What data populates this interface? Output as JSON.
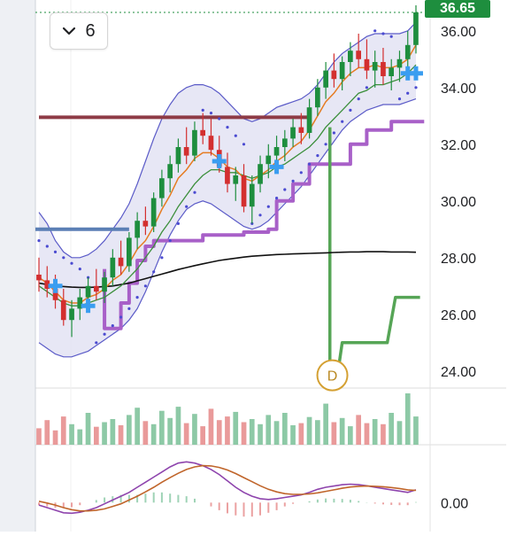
{
  "collapse_button": {
    "label": "6",
    "icon": "chevron-down-icon"
  },
  "price_tag": {
    "value": "36.65",
    "color": "#1e8e3e"
  },
  "y_axis_ticks": [
    "36.00",
    "34.00",
    "32.00",
    "30.00",
    "28.00",
    "26.00",
    "24.00"
  ],
  "macd_axis_tick": "0.00",
  "marker": {
    "label": "D"
  },
  "colors": {
    "bollinger_fill": "#e4e4f4",
    "bollinger_line": "#5b5bc8",
    "up_candle": "#1e8e3e",
    "down_candle": "#d32f2f",
    "ema_fast": "#e67c22",
    "ema_slow": "#3b8f3b",
    "sma_long": "#111111",
    "resistance": "#8e3b46",
    "support": "#5b7fb5",
    "kijun": "#a860c8",
    "chikou": "#56a556",
    "macd_line": "#8e44ad",
    "signal_line": "#c0652b"
  },
  "chart_data": {
    "type": "candlestick",
    "ylim": [
      23.4,
      36.9
    ],
    "y_ticks": [
      36,
      34,
      32,
      30,
      28,
      26,
      24
    ],
    "candles": [
      [
        27.4,
        28.0,
        26.8,
        27.2
      ],
      [
        27.2,
        27.7,
        26.6,
        26.9
      ],
      [
        26.9,
        27.4,
        26.2,
        26.5
      ],
      [
        26.5,
        26.9,
        25.6,
        25.8
      ],
      [
        25.8,
        26.5,
        25.2,
        26.2
      ],
      [
        26.2,
        26.9,
        25.8,
        26.6
      ],
      [
        26.6,
        27.3,
        26.3,
        27.0
      ],
      [
        27.0,
        27.6,
        26.5,
        26.8
      ],
      [
        26.8,
        27.5,
        26.4,
        27.3
      ],
      [
        27.3,
        28.3,
        27.0,
        28.0
      ],
      [
        28.0,
        28.6,
        27.4,
        27.7
      ],
      [
        27.7,
        28.9,
        27.5,
        28.7
      ],
      [
        28.7,
        29.6,
        28.3,
        29.3
      ],
      [
        29.3,
        29.8,
        28.8,
        29.1
      ],
      [
        29.1,
        30.3,
        28.9,
        30.1
      ],
      [
        30.1,
        31.1,
        29.8,
        30.8
      ],
      [
        30.8,
        31.6,
        30.3,
        31.3
      ],
      [
        31.3,
        32.2,
        31.0,
        31.9
      ],
      [
        31.9,
        32.6,
        31.3,
        31.6
      ],
      [
        31.6,
        32.8,
        31.4,
        32.5
      ],
      [
        32.5,
        33.1,
        32.0,
        32.3
      ],
      [
        32.3,
        32.9,
        31.6,
        31.8
      ],
      [
        31.8,
        32.3,
        31.0,
        31.2
      ],
      [
        31.2,
        31.7,
        30.3,
        30.6
      ],
      [
        30.6,
        31.2,
        30.0,
        30.9
      ],
      [
        30.9,
        31.3,
        29.6,
        29.8
      ],
      [
        29.8,
        30.9,
        29.2,
        30.6
      ],
      [
        30.6,
        31.6,
        30.3,
        31.3
      ],
      [
        31.3,
        32.0,
        30.8,
        31.6
      ],
      [
        31.6,
        32.3,
        31.2,
        31.9
      ],
      [
        31.9,
        32.5,
        31.4,
        32.2
      ],
      [
        32.2,
        32.9,
        31.9,
        32.6
      ],
      [
        32.6,
        33.1,
        32.0,
        32.4
      ],
      [
        32.4,
        33.6,
        32.2,
        33.3
      ],
      [
        33.3,
        34.3,
        33.0,
        34.0
      ],
      [
        34.0,
        34.9,
        33.6,
        34.6
      ],
      [
        34.6,
        35.2,
        34.0,
        34.3
      ],
      [
        34.3,
        35.1,
        33.9,
        34.9
      ],
      [
        34.9,
        35.6,
        34.4,
        35.3
      ],
      [
        35.3,
        35.9,
        34.7,
        35.0
      ],
      [
        35.0,
        35.7,
        34.3,
        34.6
      ],
      [
        34.6,
        35.3,
        34.0,
        34.9
      ],
      [
        34.9,
        35.4,
        34.1,
        34.4
      ],
      [
        34.4,
        35.0,
        33.9,
        34.7
      ],
      [
        34.7,
        35.3,
        34.2,
        35.0
      ],
      [
        35.0,
        36.0,
        34.6,
        35.5
      ],
      [
        35.5,
        36.9,
        35.2,
        36.65
      ]
    ],
    "bollinger_upper": [
      29.6,
      29.2,
      28.6,
      28.2,
      28.0,
      28.0,
      28.1,
      28.3,
      28.6,
      29.0,
      29.4,
      29.9,
      30.6,
      31.4,
      32.2,
      32.9,
      33.4,
      33.8,
      34.0,
      34.1,
      34.1,
      34.0,
      33.8,
      33.5,
      33.2,
      32.9,
      32.8,
      32.9,
      33.1,
      33.3,
      33.4,
      33.5,
      33.6,
      33.8,
      34.1,
      34.5,
      34.9,
      35.2,
      35.4,
      35.6,
      35.8,
      35.9,
      35.9,
      35.9,
      35.9,
      36.0,
      36.3
    ],
    "bollinger_lower": [
      25.0,
      24.8,
      24.6,
      24.5,
      24.5,
      24.6,
      24.7,
      24.9,
      25.1,
      25.3,
      25.5,
      25.8,
      26.2,
      26.8,
      27.5,
      28.2,
      28.8,
      29.3,
      29.7,
      29.9,
      30.0,
      29.9,
      29.7,
      29.5,
      29.3,
      29.1,
      29.0,
      29.1,
      29.3,
      29.6,
      29.9,
      30.2,
      30.5,
      30.9,
      31.3,
      31.7,
      32.1,
      32.5,
      32.8,
      33.0,
      33.2,
      33.3,
      33.4,
      33.4,
      33.4,
      33.5,
      33.6
    ],
    "bollinger_mid": [
      27.3,
      27.0,
      26.6,
      26.4,
      26.3,
      26.3,
      26.4,
      26.6,
      26.9,
      27.2,
      27.5,
      27.9,
      28.4,
      29.1,
      29.8,
      30.5,
      31.1,
      31.6,
      31.9,
      32.0,
      32.0,
      31.9,
      31.7,
      31.5,
      31.2,
      31.0,
      30.9,
      31.0,
      31.2,
      31.5,
      31.7,
      31.9,
      32.1,
      32.4,
      32.7,
      33.1,
      33.5,
      33.9,
      34.1,
      34.3,
      34.5,
      34.6,
      34.6,
      34.6,
      34.7,
      34.8,
      35.0
    ],
    "ema_fast": [
      27.3,
      27.1,
      26.8,
      26.5,
      26.4,
      26.4,
      26.6,
      26.7,
      26.9,
      27.2,
      27.4,
      27.8,
      28.3,
      28.6,
      29.1,
      29.7,
      30.2,
      30.8,
      31.1,
      31.5,
      31.7,
      31.7,
      31.5,
      31.2,
      31.1,
      30.8,
      30.7,
      30.9,
      31.1,
      31.4,
      31.6,
      31.9,
      32.1,
      32.5,
      33.0,
      33.5,
      33.8,
      34.2,
      34.5,
      34.7,
      34.7,
      34.8,
      34.7,
      34.7,
      34.8,
      35.0,
      35.5
    ],
    "ema_slow": [
      27.0,
      26.8,
      26.6,
      26.4,
      26.3,
      26.3,
      26.4,
      26.5,
      26.6,
      26.8,
      27.0,
      27.3,
      27.6,
      28.0,
      28.4,
      28.9,
      29.3,
      29.8,
      30.2,
      30.6,
      30.9,
      31.1,
      31.1,
      31.0,
      31.0,
      30.9,
      30.8,
      30.9,
      31.0,
      31.2,
      31.3,
      31.5,
      31.7,
      31.9,
      32.2,
      32.6,
      32.9,
      33.2,
      33.5,
      33.8,
      33.9,
      34.1,
      34.1,
      34.2,
      34.3,
      34.5,
      34.8
    ],
    "sma_long": [
      27.1,
      27.05,
      27.0,
      26.98,
      26.96,
      26.95,
      26.95,
      26.96,
      26.98,
      27.0,
      27.05,
      27.1,
      27.18,
      27.26,
      27.34,
      27.42,
      27.5,
      27.58,
      27.65,
      27.72,
      27.78,
      27.84,
      27.9,
      27.94,
      27.98,
      28.02,
      28.05,
      28.07,
      28.09,
      28.11,
      28.12,
      28.13,
      28.14,
      28.15,
      28.16,
      28.17,
      28.18,
      28.19,
      28.2,
      28.2,
      28.21,
      28.21,
      28.21,
      28.2,
      28.2,
      28.2,
      28.19
    ],
    "psar": [
      28.6,
      28.4,
      28.2,
      28.0,
      27.8,
      27.6,
      27.3,
      25.0,
      25.3,
      25.6,
      25.9,
      26.2,
      26.6,
      27.0,
      27.5,
      28.0,
      28.6,
      29.2,
      29.8,
      30.3,
      33.2,
      33.1,
      32.9,
      32.6,
      32.3,
      32.0,
      29.2,
      29.5,
      29.8,
      30.1,
      30.4,
      30.7,
      31.0,
      31.3,
      31.6,
      32.0,
      32.4,
      32.8,
      33.2,
      33.6,
      34.0,
      36.0,
      35.9,
      35.8,
      33.6,
      33.8,
      34.0
    ],
    "resistance": {
      "value": 32.95,
      "from": 0,
      "to": 33
    },
    "support": {
      "value": 29.0,
      "from": 0,
      "to": 11
    },
    "kijun": [
      null,
      null,
      null,
      null,
      null,
      null,
      null,
      null,
      null,
      null,
      null,
      null,
      null,
      null,
      null,
      null,
      null,
      null,
      null,
      null,
      null,
      null,
      null,
      null,
      null,
      null,
      null,
      null,
      null,
      null,
      null,
      null,
      null,
      null,
      null,
      null,
      null,
      null,
      null,
      null,
      null,
      null,
      null,
      null,
      null,
      null,
      null
    ],
    "volume": [
      0.32,
      0.48,
      0.28,
      0.55,
      0.4,
      0.3,
      0.62,
      0.35,
      0.44,
      0.5,
      0.38,
      0.58,
      0.72,
      0.46,
      0.4,
      0.66,
      0.52,
      0.74,
      0.42,
      0.6,
      0.36,
      0.7,
      0.48,
      0.55,
      0.64,
      0.44,
      0.5,
      0.4,
      0.58,
      0.46,
      0.62,
      0.38,
      0.42,
      0.54,
      0.48,
      0.8,
      0.44,
      0.52,
      0.36,
      0.58,
      0.42,
      0.5,
      0.4,
      0.62,
      0.46,
      1.0,
      0.55
    ],
    "macd": [
      -0.1,
      -0.2,
      -0.3,
      -0.4,
      -0.42,
      -0.38,
      -0.3,
      -0.2,
      -0.05,
      0.1,
      0.25,
      0.4,
      0.6,
      0.8,
      1.0,
      1.2,
      1.4,
      1.55,
      1.6,
      1.55,
      1.45,
      1.3,
      1.1,
      0.85,
      0.6,
      0.4,
      0.25,
      0.15,
      0.12,
      0.15,
      0.2,
      0.25,
      0.3,
      0.4,
      0.52,
      0.6,
      0.65,
      0.7,
      0.72,
      0.7,
      0.66,
      0.6,
      0.55,
      0.5,
      0.45,
      0.4,
      0.5
    ],
    "signal": [
      0.05,
      -0.02,
      -0.1,
      -0.2,
      -0.28,
      -0.33,
      -0.33,
      -0.3,
      -0.25,
      -0.15,
      -0.05,
      0.1,
      0.25,
      0.42,
      0.6,
      0.8,
      0.98,
      1.15,
      1.3,
      1.4,
      1.45,
      1.44,
      1.38,
      1.28,
      1.14,
      0.98,
      0.82,
      0.66,
      0.52,
      0.42,
      0.35,
      0.32,
      0.32,
      0.34,
      0.38,
      0.44,
      0.5,
      0.56,
      0.61,
      0.64,
      0.65,
      0.64,
      0.62,
      0.59,
      0.55,
      0.5,
      0.48
    ],
    "macd_hist": [
      -0.1,
      -0.15,
      -0.2,
      -0.2,
      -0.18,
      -0.1,
      0.0,
      0.1,
      0.2,
      0.25,
      0.3,
      0.3,
      0.3,
      0.35,
      0.4,
      0.4,
      0.35,
      0.3,
      0.25,
      0.15,
      0.0,
      -0.15,
      -0.3,
      -0.42,
      -0.5,
      -0.55,
      -0.55,
      -0.5,
      -0.4,
      -0.3,
      -0.15,
      -0.05,
      0.0,
      0.05,
      0.12,
      0.16,
      0.15,
      0.14,
      0.11,
      0.06,
      0.01,
      -0.04,
      -0.07,
      -0.09,
      -0.1,
      -0.1,
      0.02
    ],
    "macd_ylim": [
      -1.0,
      2.2
    ]
  }
}
